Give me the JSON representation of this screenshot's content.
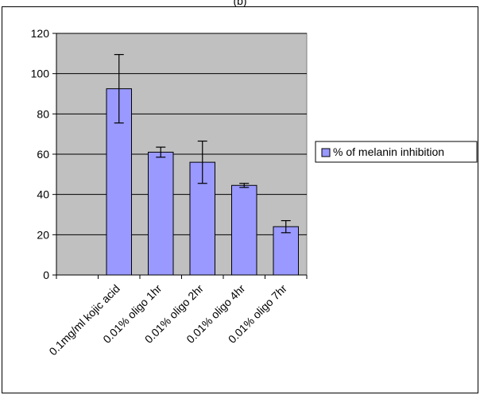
{
  "chart_data": {
    "type": "bar",
    "title": "(b)",
    "xlabel": "",
    "ylabel": "",
    "categories": [
      "0.1mg/ml kojic acid",
      "0.01% oligo 1hr",
      "0.01% oligo 2hr",
      "0.01% oligo 4hr",
      "0.01% oligo 7hr"
    ],
    "series": [
      {
        "name": "% of melanin inhibition",
        "values": [
          92.5,
          61,
          56,
          44.5,
          24
        ],
        "errors": [
          17,
          2.5,
          10.5,
          1,
          3
        ],
        "color": "#9999ff"
      }
    ],
    "ylim": [
      0,
      120
    ],
    "yticks": [
      0,
      20,
      40,
      60,
      80,
      100,
      120
    ],
    "grid": true,
    "legend": "right",
    "plot_background": "#c0c0c0"
  }
}
